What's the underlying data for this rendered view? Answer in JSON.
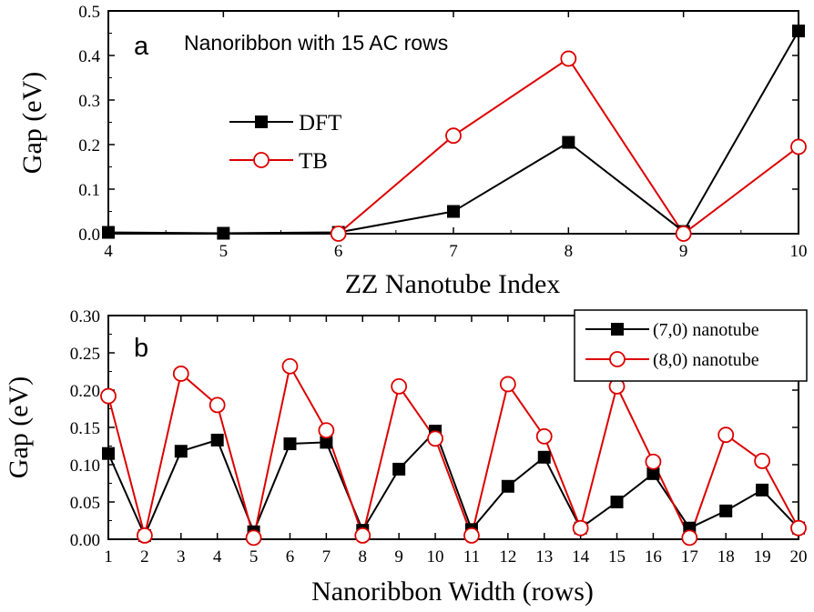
{
  "chart_data": [
    {
      "type": "line",
      "panel_label": "a",
      "title": "Nanoribbon with 15 AC rows",
      "xlabel": "ZZ Nanotube Index",
      "ylabel": "Gap (eV)",
      "xlim": [
        4,
        10
      ],
      "ylim": [
        0,
        0.5
      ],
      "xticks": [
        "4",
        "5",
        "6",
        "7",
        "8",
        "9",
        "10"
      ],
      "yticks": [
        "0.0",
        "0.1",
        "0.2",
        "0.3",
        "0.4",
        "0.5"
      ],
      "legend_position": "upper-left",
      "series": [
        {
          "name": "DFT",
          "color": "#000000",
          "marker": "filled-square",
          "x": [
            4,
            5,
            6,
            7,
            8,
            9,
            10
          ],
          "y": [
            0.003,
            0.001,
            0.003,
            0.05,
            0.205,
            0.005,
            0.455
          ]
        },
        {
          "name": "TB",
          "color": "#dd0000",
          "marker": "open-circle",
          "x": [
            6,
            7,
            8,
            9,
            10
          ],
          "y": [
            0.0,
            0.22,
            0.393,
            0.0,
            0.195
          ]
        }
      ]
    },
    {
      "type": "line",
      "panel_label": "b",
      "xlabel": "Nanoribbon Width (rows)",
      "ylabel": "Gap (eV)",
      "xlim": [
        1,
        20
      ],
      "ylim": [
        0,
        0.3
      ],
      "xticks": [
        "1",
        "2",
        "3",
        "4",
        "5",
        "6",
        "7",
        "8",
        "9",
        "10",
        "11",
        "12",
        "13",
        "14",
        "15",
        "16",
        "17",
        "18",
        "19",
        "20"
      ],
      "yticks": [
        "0.00",
        "0.05",
        "0.10",
        "0.15",
        "0.20",
        "0.25",
        "0.30"
      ],
      "legend_position": "top-right",
      "series": [
        {
          "name": "(7,0) nanotube",
          "color": "#000000",
          "marker": "filled-square",
          "x": [
            1,
            2,
            3,
            4,
            5,
            6,
            7,
            8,
            9,
            10,
            11,
            12,
            13,
            14,
            15,
            16,
            17,
            18,
            19,
            20
          ],
          "y": [
            0.115,
            0.005,
            0.118,
            0.133,
            0.01,
            0.128,
            0.13,
            0.012,
            0.094,
            0.145,
            0.013,
            0.071,
            0.11,
            0.015,
            0.05,
            0.088,
            0.015,
            0.038,
            0.066,
            0.015
          ]
        },
        {
          "name": "(8,0) nanotube",
          "color": "#dd0000",
          "marker": "open-circle",
          "x": [
            1,
            2,
            3,
            4,
            5,
            6,
            7,
            8,
            9,
            10,
            11,
            12,
            13,
            14,
            15,
            16,
            17,
            18,
            19,
            20
          ],
          "y": [
            0.192,
            0.005,
            0.222,
            0.18,
            0.002,
            0.232,
            0.146,
            0.005,
            0.205,
            0.135,
            0.005,
            0.208,
            0.138,
            0.015,
            0.205,
            0.104,
            0.002,
            0.14,
            0.105,
            0.015
          ]
        }
      ]
    }
  ]
}
